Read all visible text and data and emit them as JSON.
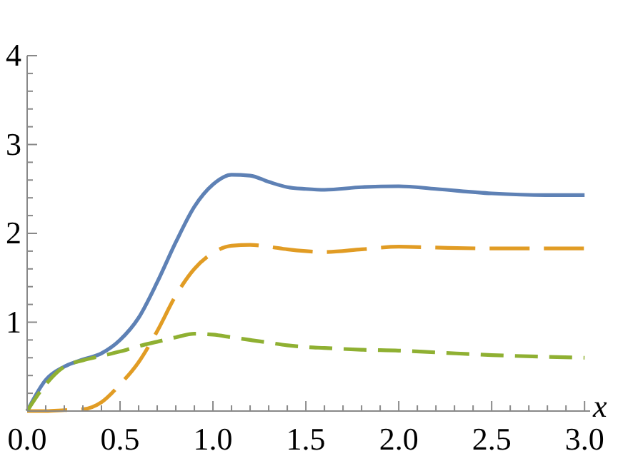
{
  "chart_data": {
    "type": "line",
    "xlabel": "x",
    "xlim": [
      0,
      3.03
    ],
    "ylim": [
      0,
      4
    ],
    "xticks": [
      {
        "value": 0,
        "label": "0.0"
      },
      {
        "value": 0.1,
        "label": null
      },
      {
        "value": 0.2,
        "label": null
      },
      {
        "value": 0.3,
        "label": null
      },
      {
        "value": 0.4,
        "label": null
      },
      {
        "value": 0.5,
        "label": "0.5"
      },
      {
        "value": 0.6,
        "label": null
      },
      {
        "value": 0.7,
        "label": null
      },
      {
        "value": 0.8,
        "label": null
      },
      {
        "value": 0.9,
        "label": null
      },
      {
        "value": 1,
        "label": "1.0"
      },
      {
        "value": 1.1,
        "label": null
      },
      {
        "value": 1.2,
        "label": null
      },
      {
        "value": 1.3,
        "label": null
      },
      {
        "value": 1.4,
        "label": null
      },
      {
        "value": 1.5,
        "label": "1.5"
      },
      {
        "value": 1.6,
        "label": null
      },
      {
        "value": 1.7,
        "label": null
      },
      {
        "value": 1.8,
        "label": null
      },
      {
        "value": 1.9,
        "label": null
      },
      {
        "value": 2,
        "label": "2.0"
      },
      {
        "value": 2.1,
        "label": null
      },
      {
        "value": 2.2,
        "label": null
      },
      {
        "value": 2.3,
        "label": null
      },
      {
        "value": 2.4,
        "label": null
      },
      {
        "value": 2.5,
        "label": "2.5"
      },
      {
        "value": 2.6,
        "label": null
      },
      {
        "value": 2.7,
        "label": null
      },
      {
        "value": 2.8,
        "label": null
      },
      {
        "value": 2.9,
        "label": null
      },
      {
        "value": 3,
        "label": "3.0"
      }
    ],
    "yticks": [
      {
        "value": 0,
        "label": null
      },
      {
        "value": 0.2,
        "label": null
      },
      {
        "value": 0.4,
        "label": null
      },
      {
        "value": 0.6,
        "label": null
      },
      {
        "value": 0.8,
        "label": null
      },
      1,
      {
        "value": 1.2,
        "label": null
      },
      {
        "value": 1.4,
        "label": null
      },
      {
        "value": 1.6,
        "label": null
      },
      {
        "value": 1.8,
        "label": null
      },
      2,
      {
        "value": 2.2,
        "label": null
      },
      {
        "value": 2.4,
        "label": null
      },
      {
        "value": 2.6,
        "label": null
      },
      {
        "value": 2.8,
        "label": null
      },
      3,
      {
        "value": 3.2,
        "label": null
      },
      {
        "value": 3.4,
        "label": null
      },
      {
        "value": 3.6,
        "label": null
      },
      {
        "value": 3.8,
        "label": null
      },
      4
    ],
    "grid": false,
    "marker": "none",
    "x": [
      0,
      0.1,
      0.2,
      0.3,
      0.4,
      0.5,
      0.6,
      0.7,
      0.8,
      0.9,
      1.0,
      1.1,
      1.2,
      1.3,
      1.4,
      1.5,
      1.6,
      1.8,
      2.0,
      2.2,
      2.5,
      2.8,
      3.0
    ],
    "series": [
      {
        "color": "#5e81b5",
        "line_style": "solid",
        "values": [
          0,
          0.35,
          0.5,
          0.58,
          0.65,
          0.8,
          1.05,
          1.45,
          1.9,
          2.3,
          2.55,
          2.66,
          2.65,
          2.58,
          2.52,
          2.5,
          2.49,
          2.52,
          2.53,
          2.5,
          2.45,
          2.43,
          2.43
        ]
      },
      {
        "color": "#e19c24",
        "line_style": "long-dashed",
        "values": [
          0,
          0,
          0.01,
          0.02,
          0.1,
          0.3,
          0.55,
          0.9,
          1.3,
          1.6,
          1.78,
          1.86,
          1.87,
          1.85,
          1.82,
          1.8,
          1.79,
          1.82,
          1.85,
          1.84,
          1.83,
          1.83,
          1.83
        ]
      },
      {
        "color": "#8fb032",
        "line_style": "dashed",
        "values": [
          0,
          0.3,
          0.5,
          0.57,
          0.62,
          0.67,
          0.73,
          0.78,
          0.83,
          0.87,
          0.86,
          0.83,
          0.8,
          0.77,
          0.74,
          0.72,
          0.71,
          0.69,
          0.68,
          0.66,
          0.63,
          0.61,
          0.6
        ]
      }
    ]
  }
}
